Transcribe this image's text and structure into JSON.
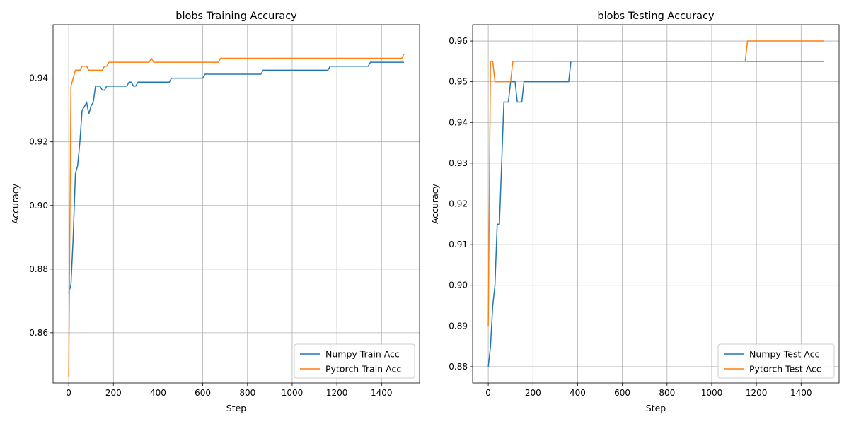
{
  "chart_data": [
    {
      "type": "line",
      "title": "blobs Training Accuracy",
      "xlabel": "Step",
      "ylabel": "Accuracy",
      "xlim": [
        -70,
        1570
      ],
      "ylim": [
        0.8442,
        0.9568
      ],
      "xticks": [
        0,
        200,
        400,
        600,
        800,
        1000,
        1200,
        1400
      ],
      "yticks": [
        0.86,
        0.88,
        0.9,
        0.92,
        0.94
      ],
      "ytick_labels": [
        "0.86",
        "0.88",
        "0.90",
        "0.92",
        "0.94"
      ],
      "grid": true,
      "legend": "lower right",
      "series": [
        {
          "name": "Numpy Train Acc",
          "color": "#1f77b4",
          "x": [
            0,
            10,
            20,
            30,
            40,
            50,
            60,
            70,
            80,
            90,
            100,
            110,
            120,
            130,
            140,
            150,
            160,
            170,
            180,
            190,
            200,
            260,
            270,
            280,
            290,
            300,
            310,
            320,
            450,
            460,
            600,
            610,
            860,
            870,
            1160,
            1170,
            1340,
            1350,
            1500
          ],
          "y": [
            0.8725,
            0.875,
            0.89,
            0.91,
            0.9125,
            0.92,
            0.93,
            0.931,
            0.9325,
            0.92875,
            0.93125,
            0.9325,
            0.9375,
            0.9375,
            0.9375,
            0.93625,
            0.93625,
            0.9375,
            0.9375,
            0.9375,
            0.9375,
            0.9375,
            0.93875,
            0.93875,
            0.9375,
            0.9375,
            0.93875,
            0.93875,
            0.93875,
            0.94,
            0.94,
            0.94125,
            0.94125,
            0.9425,
            0.9425,
            0.94375,
            0.94375,
            0.945,
            0.945
          ]
        },
        {
          "name": "Pytorch Train Acc",
          "color": "#ff7f0e",
          "x": [
            0,
            10,
            20,
            30,
            40,
            50,
            60,
            70,
            80,
            90,
            100,
            150,
            160,
            170,
            180,
            190,
            360,
            370,
            380,
            390,
            670,
            680,
            1490,
            1500
          ],
          "y": [
            0.84625,
            0.9375,
            0.94,
            0.9425,
            0.9425,
            0.9425,
            0.94375,
            0.94375,
            0.94375,
            0.9425,
            0.9425,
            0.9425,
            0.94375,
            0.94375,
            0.945,
            0.945,
            0.945,
            0.94625,
            0.945,
            0.945,
            0.945,
            0.94625,
            0.94625,
            0.9475
          ]
        }
      ]
    },
    {
      "type": "line",
      "title": "blobs Testing Accuracy",
      "xlabel": "Step",
      "ylabel": "Accuracy",
      "xlim": [
        -70,
        1570
      ],
      "ylim": [
        0.876,
        0.964
      ],
      "xticks": [
        0,
        200,
        400,
        600,
        800,
        1000,
        1200,
        1400
      ],
      "yticks": [
        0.88,
        0.89,
        0.9,
        0.91,
        0.92,
        0.93,
        0.94,
        0.95,
        0.96
      ],
      "ytick_labels": [
        "0.88",
        "0.89",
        "0.90",
        "0.91",
        "0.92",
        "0.93",
        "0.94",
        "0.95",
        "0.96"
      ],
      "grid": true,
      "legend": "lower right",
      "series": [
        {
          "name": "Numpy Test Acc",
          "color": "#1f77b4",
          "x": [
            0,
            10,
            20,
            30,
            40,
            50,
            60,
            70,
            80,
            90,
            100,
            110,
            120,
            130,
            140,
            150,
            160,
            170,
            360,
            370,
            1500
          ],
          "y": [
            0.88,
            0.885,
            0.895,
            0.9,
            0.915,
            0.915,
            0.93,
            0.945,
            0.945,
            0.945,
            0.95,
            0.95,
            0.95,
            0.945,
            0.945,
            0.945,
            0.95,
            0.95,
            0.95,
            0.955,
            0.955
          ]
        },
        {
          "name": "Pytorch Test Acc",
          "color": "#ff7f0e",
          "x": [
            0,
            10,
            20,
            30,
            40,
            100,
            110,
            1150,
            1160,
            1500
          ],
          "y": [
            0.89,
            0.955,
            0.955,
            0.95,
            0.95,
            0.95,
            0.955,
            0.955,
            0.96,
            0.96
          ]
        }
      ]
    }
  ]
}
